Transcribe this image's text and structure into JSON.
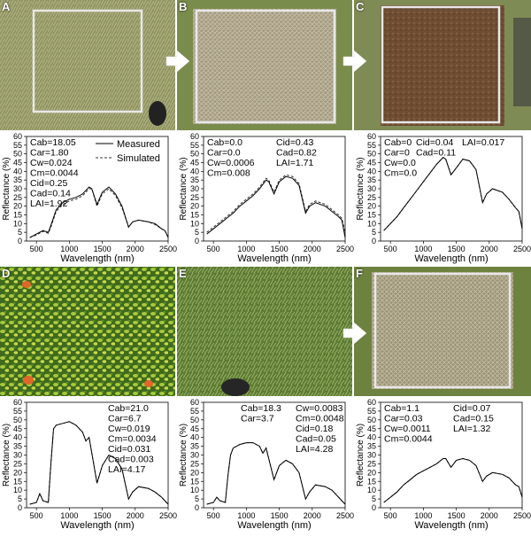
{
  "panels": [
    {
      "letter": "A",
      "photo": "dry grass plot inside a square frame"
    },
    {
      "letter": "B",
      "photo": "cut litter plot inside a square frame"
    },
    {
      "letter": "C",
      "photo": "bare soil plot inside a square frame"
    },
    {
      "letter": "D",
      "photo": "green leafy vegetation"
    },
    {
      "letter": "E",
      "photo": "green grass"
    },
    {
      "letter": "F",
      "photo": "dry grass plot inside a square frame"
    }
  ],
  "arrows_before": [
    "B",
    "C",
    "F"
  ],
  "colors": {
    "measured": "#000000",
    "simulated": "#333333",
    "axis": "#000000",
    "frame": "#e8e8e8"
  },
  "chart_data": [
    {
      "id": "A",
      "type": "line",
      "xlabel": "Wavelength (nm)",
      "ylabel": "Reflectance (%)",
      "xlim": [
        350,
        2500
      ],
      "ylim": [
        0,
        60
      ],
      "xticks": [
        500,
        1000,
        1500,
        2000,
        2500
      ],
      "yticks": [
        0,
        5,
        10,
        15,
        20,
        25,
        30,
        35,
        40,
        45,
        50,
        55,
        60
      ],
      "legend": [
        "Measured",
        "Simulated"
      ],
      "params": [
        "Cab=18.05",
        "Car=1.80",
        "Cw=0.024",
        "Cm=0.0044",
        "Cid=0.25",
        "Cad=0.14",
        "LAI=1.92"
      ],
      "x": [
        400,
        500,
        600,
        680,
        720,
        800,
        900,
        1000,
        1100,
        1200,
        1300,
        1340,
        1420,
        1500,
        1600,
        1700,
        1800,
        1900,
        1960,
        2050,
        2200,
        2300,
        2400,
        2450,
        2500
      ],
      "measured": [
        2,
        4,
        6,
        5,
        9,
        18,
        22,
        24,
        25,
        27,
        31,
        30,
        21,
        28,
        31,
        27,
        20,
        8,
        11,
        12,
        11,
        10,
        7,
        6,
        2
      ],
      "simulated": [
        2,
        3.5,
        5.5,
        4.5,
        8,
        17,
        21,
        23,
        24,
        26,
        30,
        30,
        20,
        27,
        30,
        26,
        19,
        8,
        11,
        12,
        11,
        9.5,
        7,
        6,
        2.5
      ]
    },
    {
      "id": "B",
      "type": "line",
      "xlabel": "Wavelength (nm)",
      "ylabel": "Reflectance (%)",
      "xlim": [
        350,
        2500
      ],
      "ylim": [
        0,
        60
      ],
      "xticks": [
        500,
        1000,
        1500,
        2000,
        2500
      ],
      "yticks": [
        0,
        5,
        10,
        15,
        20,
        25,
        30,
        35,
        40,
        45,
        50,
        55,
        60
      ],
      "legend": [],
      "params": [
        "Cab=0.0",
        "Car=0.0",
        "Cw=0.0006",
        "Cm=0.008",
        "Cid=0.43",
        "Cad=0.82",
        "LAI=1.71"
      ],
      "x": [
        400,
        500,
        600,
        700,
        800,
        900,
        1000,
        1100,
        1200,
        1300,
        1340,
        1420,
        1500,
        1600,
        1700,
        1800,
        1900,
        1960,
        2050,
        2200,
        2300,
        2400,
        2450,
        2500
      ],
      "measured": [
        4,
        7,
        10,
        13,
        16,
        20,
        23,
        26,
        30,
        35,
        34,
        27,
        34,
        37,
        36,
        32,
        16,
        20,
        22,
        20,
        17,
        14,
        12,
        2
      ],
      "simulated": [
        5,
        8,
        11,
        14,
        17,
        21,
        24,
        27,
        31,
        36,
        35,
        28,
        35,
        38,
        37,
        33,
        17,
        21,
        23,
        21,
        18,
        15,
        13,
        5
      ]
    },
    {
      "id": "C",
      "type": "line",
      "xlabel": "Wavelength (nm)",
      "ylabel": "Reflectance (%)",
      "xlim": [
        350,
        2500
      ],
      "ylim": [
        0,
        60
      ],
      "xticks": [
        500,
        1000,
        1500,
        2000,
        2500
      ],
      "yticks": [
        0,
        5,
        10,
        15,
        20,
        25,
        30,
        35,
        40,
        45,
        50,
        55,
        60
      ],
      "legend": [],
      "params": [
        "Cab=0",
        "Car=0",
        "Cw=0.0",
        "Cm=0.0",
        "Cid=0.04",
        "Cad=0.11",
        "LAI=0.017"
      ],
      "x": [
        400,
        500,
        600,
        700,
        800,
        900,
        1000,
        1100,
        1200,
        1300,
        1340,
        1420,
        1500,
        1600,
        1700,
        1800,
        1900,
        1960,
        2050,
        2200,
        2300,
        2400,
        2450,
        2500
      ],
      "measured": [
        6,
        10,
        14,
        19,
        24,
        29,
        34,
        39,
        44,
        48,
        47,
        38,
        42,
        47,
        46,
        41,
        22,
        27,
        30,
        28,
        24,
        19,
        17,
        7
      ],
      "simulated": [
        6,
        10,
        14,
        19,
        24,
        29,
        34,
        39,
        44,
        48,
        47,
        38,
        42,
        47,
        46,
        41,
        22,
        27,
        30,
        28,
        24,
        19,
        17,
        7
      ]
    },
    {
      "id": "D",
      "type": "line",
      "xlabel": "Wavelength (nm)",
      "ylabel": "Reflectance (%)",
      "xlim": [
        350,
        2500
      ],
      "ylim": [
        0,
        60
      ],
      "xticks": [
        500,
        1000,
        1500,
        2000,
        2500
      ],
      "yticks": [
        0,
        5,
        10,
        15,
        20,
        25,
        30,
        35,
        40,
        45,
        50,
        55,
        60
      ],
      "legend": [],
      "params": [
        "Cab=21.0",
        "Car=6.7",
        "Cw=0.019",
        "Cm=0.0034",
        "Cid=0.031",
        "Cad=0.003",
        "LAI=4.17"
      ],
      "x": [
        400,
        500,
        550,
        600,
        680,
        720,
        760,
        800,
        900,
        1000,
        1100,
        1200,
        1250,
        1300,
        1420,
        1500,
        1600,
        1700,
        1800,
        1900,
        1960,
        2050,
        2200,
        2300,
        2400,
        2450,
        2500
      ],
      "measured": [
        2,
        3,
        8,
        4,
        3,
        25,
        45,
        47,
        48,
        49,
        47,
        43,
        38,
        40,
        14,
        24,
        30,
        28,
        22,
        5,
        9,
        12,
        11,
        9,
        6,
        4,
        2
      ],
      "simulated": [
        2,
        3,
        8,
        4,
        3,
        25,
        45,
        47,
        48,
        49,
        47,
        43,
        38,
        40,
        14,
        24,
        30,
        28,
        22,
        5,
        9,
        12,
        11,
        9,
        6,
        4,
        2
      ]
    },
    {
      "id": "E",
      "type": "line",
      "xlabel": "Wavelength (nm)",
      "ylabel": "Reflectance (%)",
      "xlim": [
        350,
        2500
      ],
      "ylim": [
        0,
        60
      ],
      "xticks": [
        500,
        1000,
        1500,
        2000,
        2500
      ],
      "yticks": [
        0,
        5,
        10,
        15,
        20,
        25,
        30,
        35,
        40,
        45,
        50,
        55,
        60
      ],
      "legend": [],
      "params": [
        "Cab=18.3",
        "Car=3.7",
        "Cw=0.0083",
        "Cm=0.0048",
        "Cid=0.18",
        "Cad=0.05",
        "LAI=4.28"
      ],
      "x": [
        400,
        500,
        550,
        600,
        680,
        720,
        760,
        800,
        900,
        1000,
        1100,
        1200,
        1250,
        1300,
        1420,
        1500,
        1600,
        1700,
        1800,
        1900,
        1960,
        2050,
        2200,
        2300,
        2400,
        2450,
        2500
      ],
      "measured": [
        2,
        3,
        6,
        4,
        3,
        18,
        30,
        34,
        36,
        37,
        37,
        35,
        31,
        34,
        16,
        24,
        27,
        25,
        20,
        5,
        9,
        13,
        12,
        10,
        6,
        4,
        2
      ],
      "simulated": [
        2,
        3,
        6,
        4,
        3,
        18,
        30,
        34,
        36,
        37,
        37,
        35,
        31,
        34,
        16,
        24,
        27,
        25,
        20,
        5,
        9,
        13,
        12,
        10,
        6,
        4,
        2
      ]
    },
    {
      "id": "F",
      "type": "line",
      "xlabel": "Wavelength (nm)",
      "ylabel": "Reflectance (%)",
      "xlim": [
        350,
        2500
      ],
      "ylim": [
        0,
        60
      ],
      "xticks": [
        500,
        1000,
        1500,
        2000,
        2500
      ],
      "yticks": [
        0,
        5,
        10,
        15,
        20,
        25,
        30,
        35,
        40,
        45,
        50,
        55,
        60
      ],
      "legend": [],
      "params": [
        "Cab=1.1",
        "Car=0.03",
        "Cw=0.0011",
        "Cm=0.0044",
        "Cid=0.07",
        "Cad=0.15",
        "LAI=1.32"
      ],
      "x": [
        400,
        500,
        600,
        700,
        800,
        900,
        1000,
        1100,
        1200,
        1300,
        1340,
        1420,
        1500,
        1600,
        1700,
        1800,
        1900,
        1960,
        2050,
        2200,
        2300,
        2400,
        2450,
        2500
      ],
      "measured": [
        3,
        6,
        9,
        13,
        16,
        19,
        21,
        23,
        25,
        28,
        28,
        23,
        27,
        28,
        27,
        24,
        15,
        18,
        20,
        19,
        17,
        13,
        12,
        6
      ],
      "simulated": [
        3,
        6,
        9,
        13,
        16,
        19,
        21,
        23,
        25,
        28,
        28,
        23,
        27,
        28,
        27,
        24,
        15,
        18,
        20,
        19,
        17,
        13,
        12,
        6
      ]
    }
  ]
}
